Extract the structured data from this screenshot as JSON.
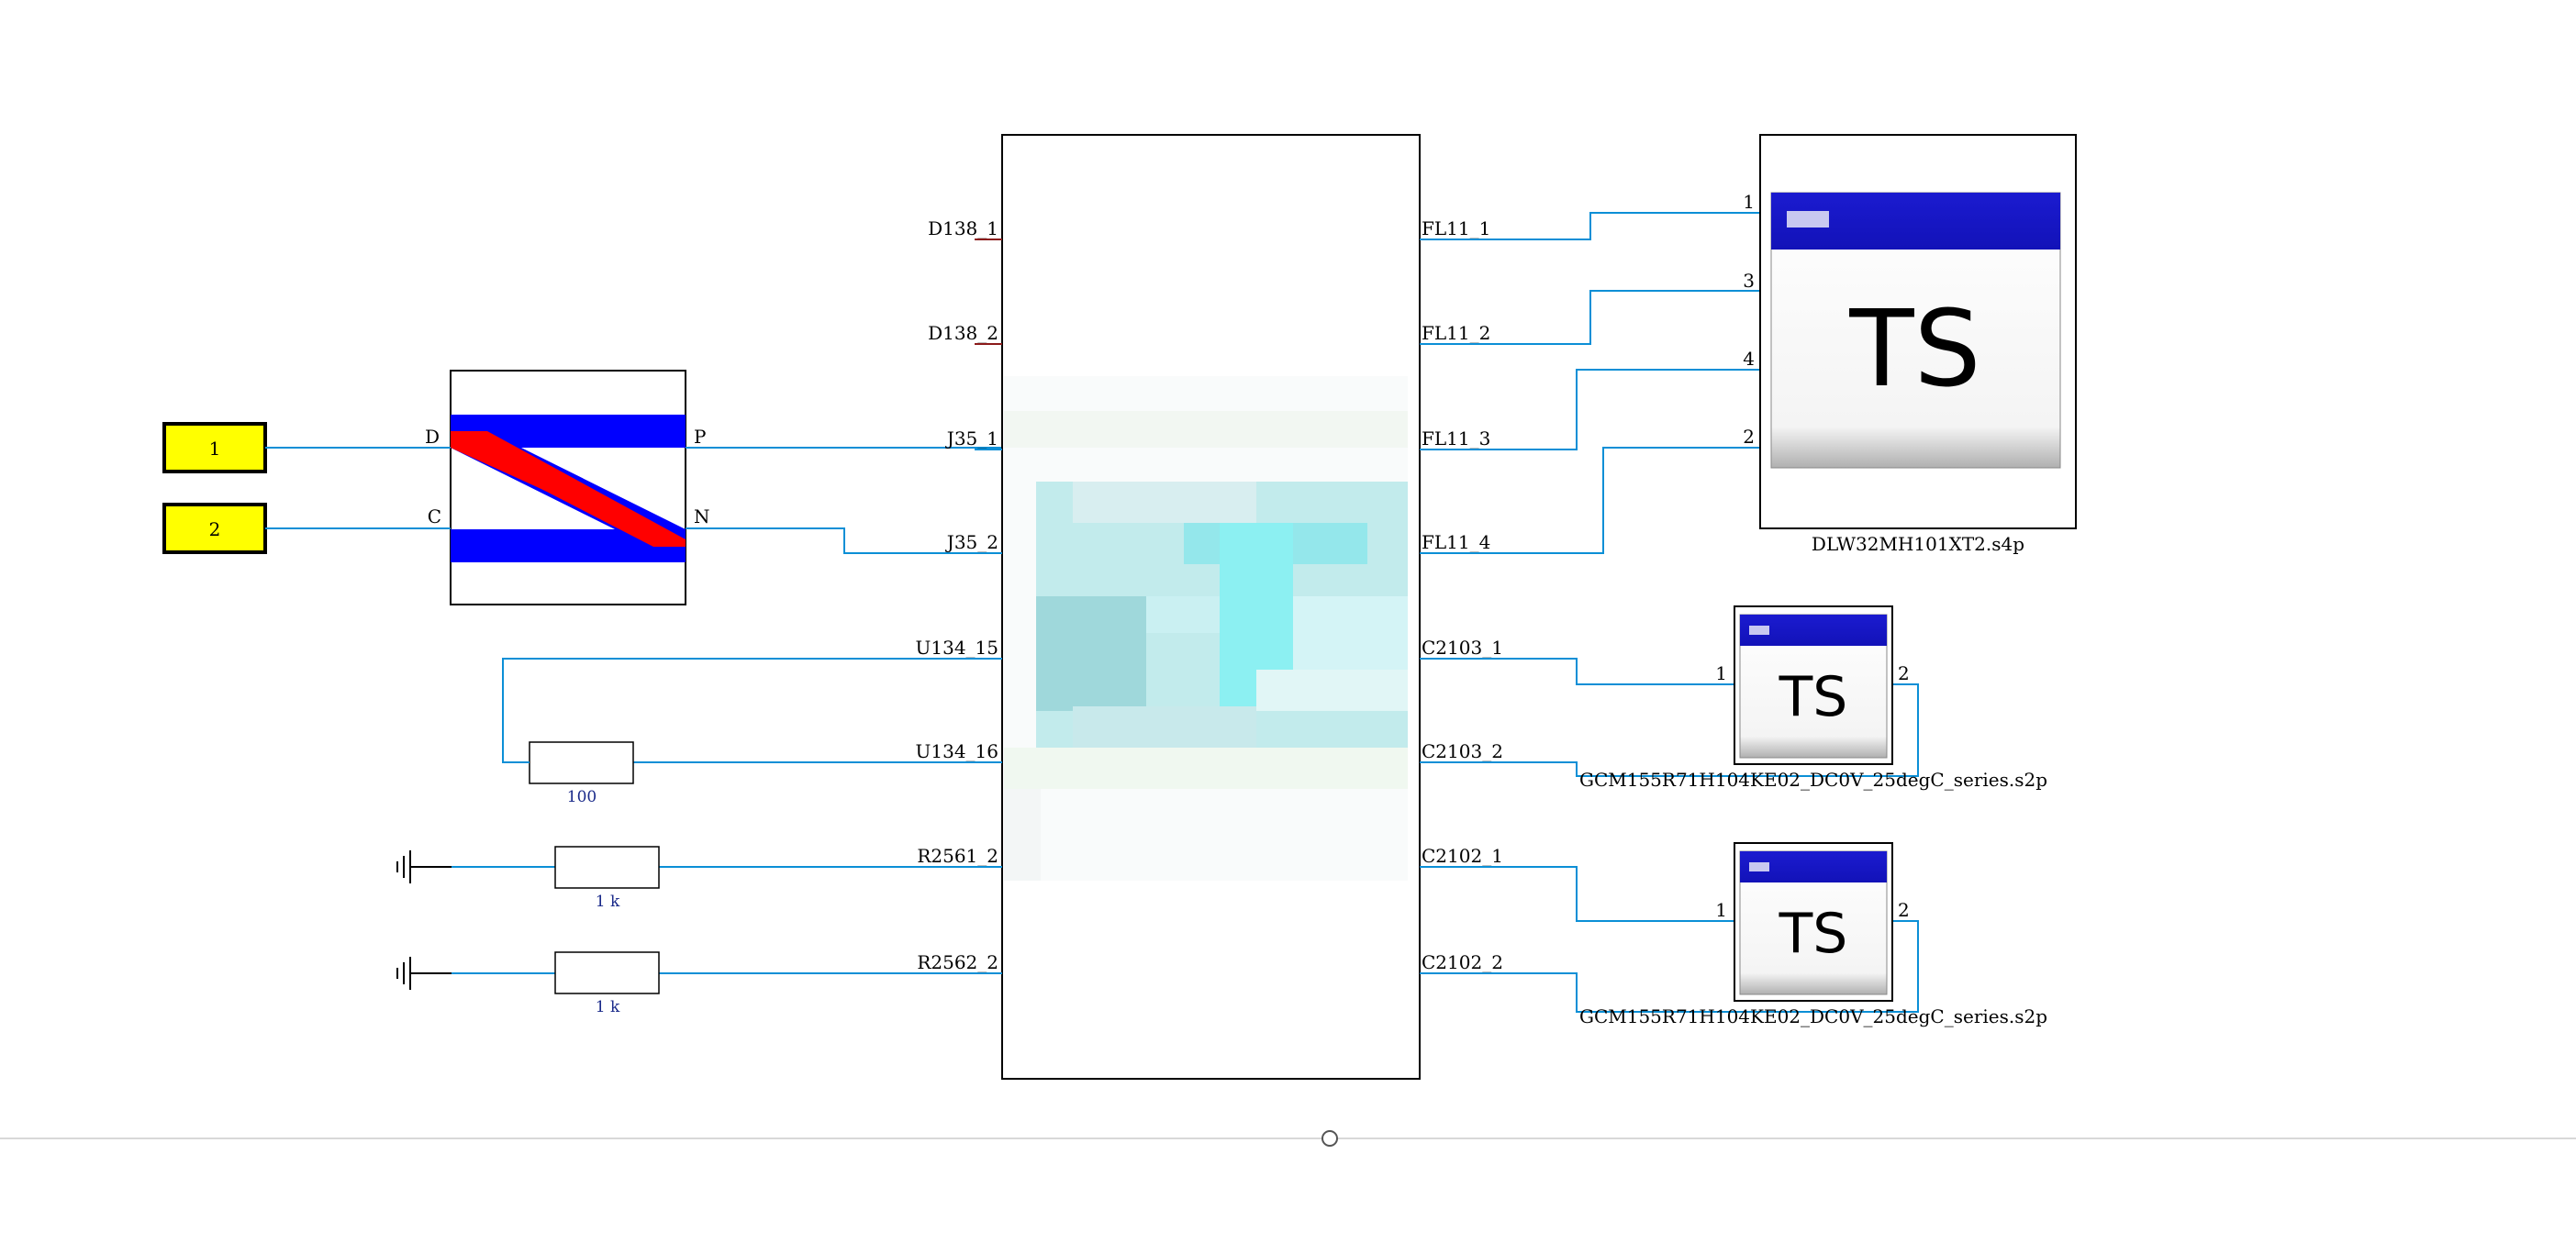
{
  "ports": [
    {
      "label": "1"
    },
    {
      "label": "2"
    }
  ],
  "balun": {
    "pin_d": "D",
    "pin_c": "C",
    "pin_p": "P",
    "pin_n": "N"
  },
  "main_block": {
    "left_pins": [
      "D138_1",
      "D138_2",
      "J35_1",
      "J35_2",
      "U134_15",
      "U134_16",
      "R2561_2",
      "R2562_2"
    ],
    "right_pins": [
      "FL11_1",
      "FL11_2",
      "FL11_3",
      "FL11_4",
      "C2103_1",
      "C2103_2",
      "C2102_1",
      "C2102_2"
    ]
  },
  "resistors": [
    {
      "value": "100"
    },
    {
      "value": "1 k"
    },
    {
      "value": "1 k"
    }
  ],
  "ts_blocks": [
    {
      "glyph": "TS",
      "file": "DLW32MH101XT2.s4p",
      "pins": [
        "1",
        "3",
        "4",
        "2"
      ]
    },
    {
      "glyph": "TS",
      "file": "GCM155R71H104KE02_DC0V_25degC_series.s2p",
      "pins": [
        "1",
        "2"
      ]
    },
    {
      "glyph": "TS",
      "file": "GCM155R71H104KE02_DC0V_25degC_series.s2p",
      "pins": [
        "1",
        "2"
      ]
    }
  ],
  "colors": {
    "wire": "#0b8fd6",
    "port_fill": "#ffff00",
    "balun_blue": "#0000ff",
    "balun_red": "#ff0000",
    "ts_header": "#1414c8"
  }
}
